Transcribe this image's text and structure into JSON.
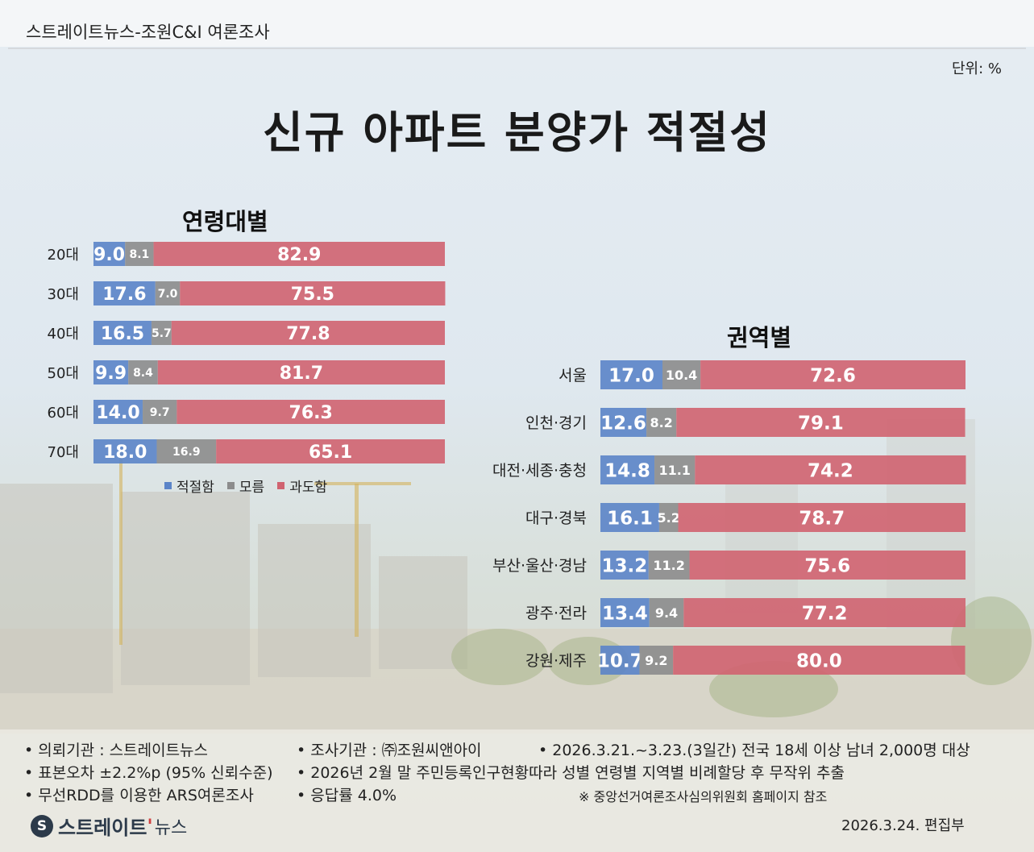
{
  "header": {
    "source": "스트레이트뉴스-조원C&I 여론조사",
    "unit": "단위: %",
    "title": "신규 아파트 분양가 적절성"
  },
  "colors": {
    "appropriate": "#5b84c8",
    "unknown": "#8c8c8c",
    "excessive": "#d06370"
  },
  "legend": [
    "적절함",
    "모름",
    "과도함"
  ],
  "chart_data": [
    {
      "type": "bar",
      "stacked": true,
      "orientation": "horizontal",
      "title": "연령대별",
      "categories": [
        "20대",
        "30대",
        "40대",
        "50대",
        "60대",
        "70대"
      ],
      "series": [
        {
          "name": "적절함",
          "values": [
            9.0,
            17.6,
            16.5,
            9.9,
            14.0,
            18.0
          ]
        },
        {
          "name": "모름",
          "values": [
            8.1,
            7.0,
            5.7,
            8.4,
            9.7,
            16.9
          ]
        },
        {
          "name": "과도함",
          "values": [
            82.9,
            75.5,
            77.8,
            81.7,
            76.3,
            65.1
          ]
        }
      ],
      "xlim": [
        0,
        100
      ],
      "legend_position": "bottom"
    },
    {
      "type": "bar",
      "stacked": true,
      "orientation": "horizontal",
      "title": "권역별",
      "categories": [
        "서울",
        "인천·경기",
        "대전·세종·충청",
        "대구·경북",
        "부산·울산·경남",
        "광주·전라",
        "강원·제주"
      ],
      "series": [
        {
          "name": "적절함",
          "values": [
            17.0,
            12.6,
            14.8,
            16.1,
            13.2,
            13.4,
            10.7
          ]
        },
        {
          "name": "모름",
          "values": [
            10.4,
            8.2,
            11.1,
            5.2,
            11.2,
            9.4,
            9.2
          ]
        },
        {
          "name": "과도함",
          "values": [
            72.6,
            79.1,
            74.2,
            78.7,
            75.6,
            77.2,
            80.0
          ]
        }
      ],
      "xlim": [
        0,
        100
      ]
    }
  ],
  "footer": {
    "client": "• 의뢰기관 : 스트레이트뉴스",
    "agency": "• 조사기관 : ㈜조원씨앤아이",
    "period": "• 2026.3.21.~3.23.(3일간) 전국 18세 이상 남녀 2,000명 대상",
    "error": "• 표본오차 ±2.2%p (95% 신뢰수준)",
    "sampling": "• 2026년 2월 말 주민등록인구현황따라 성별 연령별 지역별 비례할당 후 무작위 추출",
    "method": "• 무선RDD를 이용한 ARS여론조사",
    "response": "• 응답률 4.0%",
    "note": "※ 중앙선거여론조사심의위원회 홈페이지 참조",
    "logo_main": "스트레이트",
    "logo_sub": "뉴스",
    "date": "2026.3.24.  편집부"
  }
}
